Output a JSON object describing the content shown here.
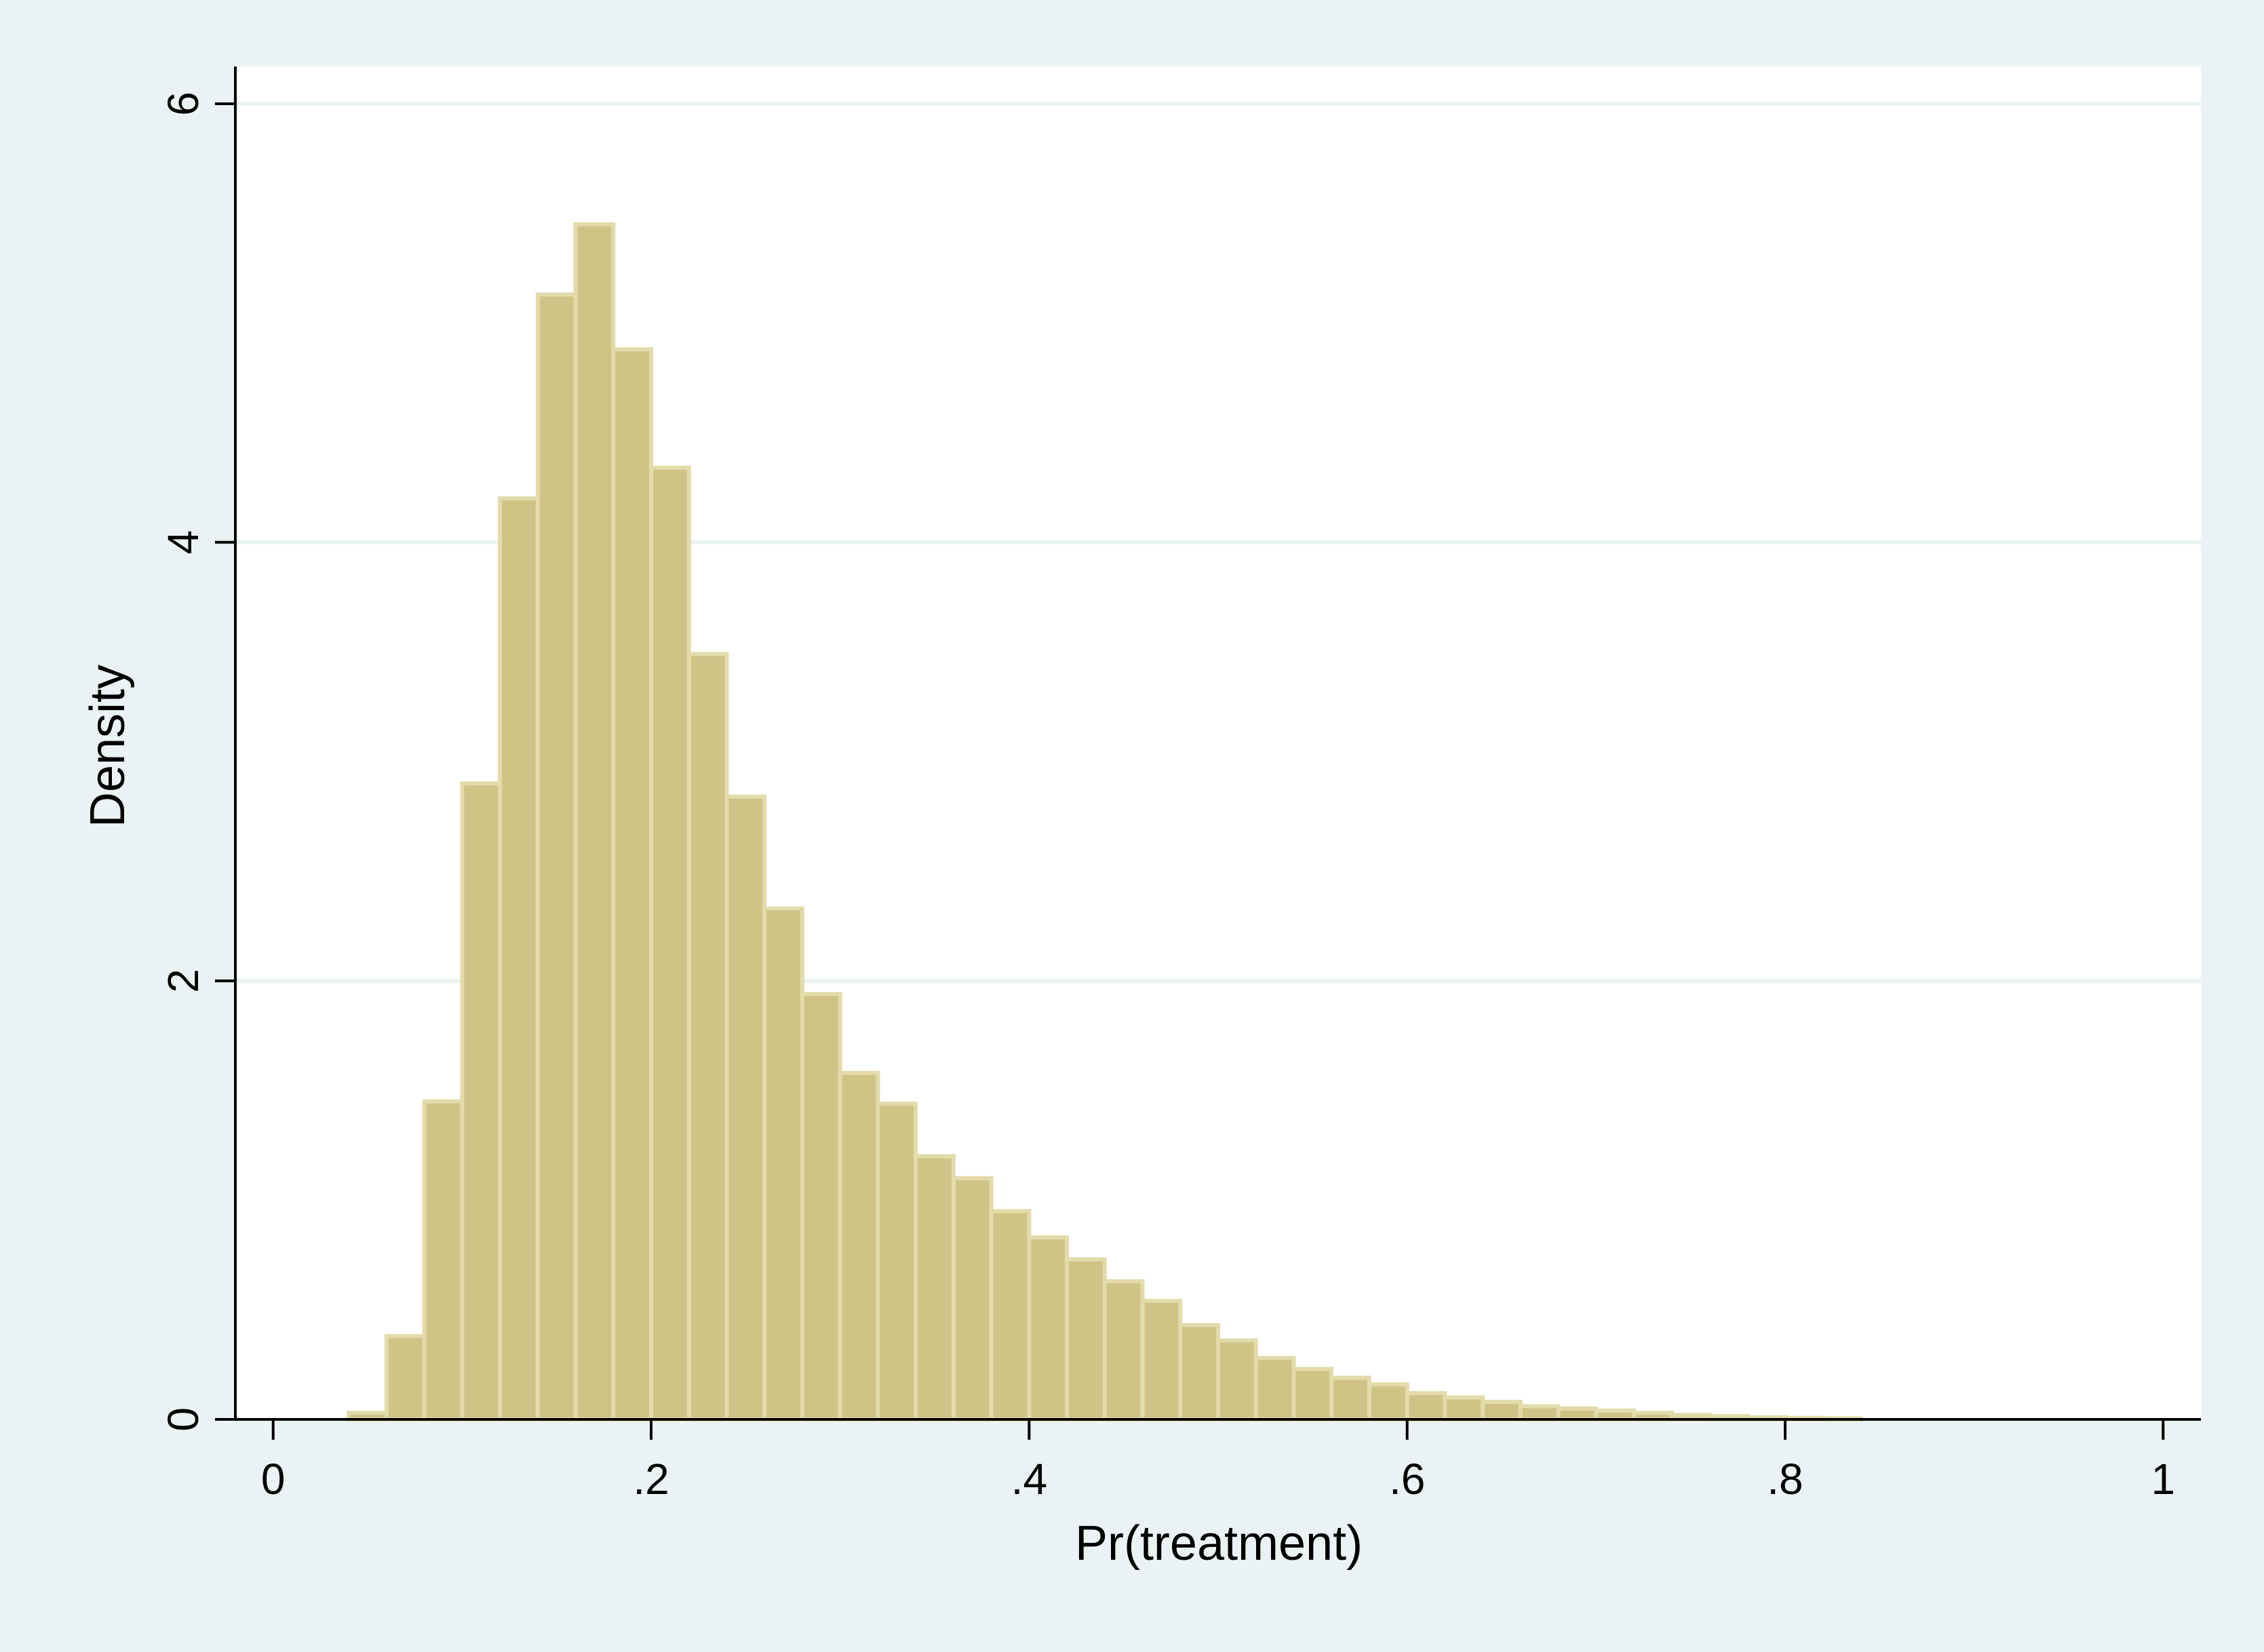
{
  "colors": {
    "outer_background": "#eaf2f3",
    "plot_background": "#ffffff",
    "gridline": "#eaf2f3",
    "bar_fill": "#cfc486",
    "bar_edge": "#e3dbaa",
    "axis": "#000000"
  },
  "chart_data": {
    "type": "bar",
    "subtype": "histogram",
    "xlabel": "Pr(treatment)",
    "ylabel": "Density",
    "xlim": [
      -0.02,
      1.02
    ],
    "ylim": [
      0,
      6.17
    ],
    "x_ticks": [
      {
        "value": 0,
        "label": "0"
      },
      {
        "value": 0.2,
        "label": ".2"
      },
      {
        "value": 0.4,
        "label": ".4"
      },
      {
        "value": 0.6,
        "label": ".6"
      },
      {
        "value": 0.8,
        "label": ".8"
      },
      {
        "value": 1,
        "label": "1"
      }
    ],
    "y_ticks": [
      {
        "value": 0,
        "label": "0"
      },
      {
        "value": 2,
        "label": "2"
      },
      {
        "value": 4,
        "label": "4"
      },
      {
        "value": 6,
        "label": "6"
      }
    ],
    "grid": true,
    "legend": "none",
    "bin_start": 0.04,
    "bin_width": 0.02,
    "values": [
      0.03,
      0.38,
      1.45,
      2.9,
      4.2,
      5.13,
      5.45,
      4.88,
      4.34,
      3.49,
      2.84,
      2.33,
      1.94,
      1.58,
      1.44,
      1.2,
      1.1,
      0.95,
      0.83,
      0.73,
      0.63,
      0.54,
      0.43,
      0.36,
      0.28,
      0.23,
      0.19,
      0.16,
      0.12,
      0.1,
      0.08,
      0.06,
      0.05,
      0.04,
      0.03,
      0.02,
      0.015,
      0.01,
      0.007,
      0.005
    ]
  }
}
